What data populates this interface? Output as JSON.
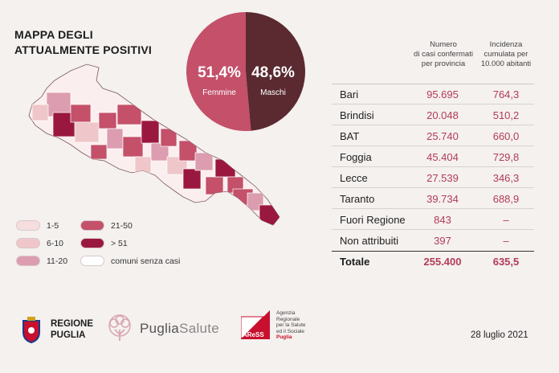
{
  "title_lines": [
    "MAPPA DEGLI",
    "ATTUALMENTE POSITIVI"
  ],
  "pie": {
    "femmine": {
      "pct": "51,4%",
      "label": "Femmine",
      "value": 51.4,
      "color": "#c4506a"
    },
    "maschi": {
      "pct": "48,6%",
      "label": "Maschi",
      "value": 48.6,
      "color": "#5a2a30"
    }
  },
  "legend": [
    {
      "label": "1-5",
      "color": "#f6dede"
    },
    {
      "label": "6-10",
      "color": "#efc6c9"
    },
    {
      "label": "11-20",
      "color": "#dc9db0"
    },
    {
      "label": "21-50",
      "color": "#c4506a"
    },
    {
      "label": "> 51",
      "color": "#9a1840"
    },
    {
      "label": "comuni senza casi",
      "color": "#ffffff"
    }
  ],
  "table": {
    "header_casi": [
      "Numero",
      "di casi confermati",
      "per provincia"
    ],
    "header_incidenza": [
      "Incidenza",
      "cumulata per",
      "10.000 abitanti"
    ],
    "rows": [
      {
        "name": "Bari",
        "casi": "95.695",
        "incidenza": "764,3"
      },
      {
        "name": "Brindisi",
        "casi": "20.048",
        "incidenza": "510,2"
      },
      {
        "name": "BAT",
        "casi": "25.740",
        "incidenza": "660,0"
      },
      {
        "name": "Foggia",
        "casi": "45.404",
        "incidenza": "729,8"
      },
      {
        "name": "Lecce",
        "casi": "27.539",
        "incidenza": "346,3"
      },
      {
        "name": "Taranto",
        "casi": "39.734",
        "incidenza": "688,9"
      },
      {
        "name": "Fuori Regione",
        "casi": "843",
        "incidenza": "–"
      },
      {
        "name": "Non attribuiti",
        "casi": "397",
        "incidenza": "–"
      }
    ],
    "total": {
      "name": "Totale",
      "casi": "255.400",
      "incidenza": "635,5"
    }
  },
  "logos": {
    "regione": [
      "REGIONE",
      "PUGLIA"
    ],
    "puglia_salute": [
      "Puglia",
      "Salute"
    ],
    "aress_mark": "AReSS",
    "aress_lines": [
      "Agenzia",
      "Regionale",
      "per la Salute",
      "ed il Sociale"
    ],
    "aress_red": "Puglia"
  },
  "date": "28 luglio 2021",
  "chart_data": {
    "type": "pie",
    "categories": [
      "Femmine",
      "Maschi"
    ],
    "values": [
      51.4,
      48.6
    ],
    "title": "MAPPA DEGLI ATTUALMENTE POSITIVI",
    "table": {
      "columns": [
        "Numero di casi confermati per provincia",
        "Incidenza cumulata per 10.000 abitanti"
      ],
      "rows": [
        [
          "Bari",
          95695,
          764.3
        ],
        [
          "Brindisi",
          20048,
          510.2
        ],
        [
          "BAT",
          25740,
          660.0
        ],
        [
          "Foggia",
          45404,
          729.8
        ],
        [
          "Lecce",
          27539,
          346.3
        ],
        [
          "Taranto",
          39734,
          688.9
        ],
        [
          "Fuori Regione",
          843,
          null
        ],
        [
          "Non attribuiti",
          397,
          null
        ],
        [
          "Totale",
          255400,
          635.5
        ]
      ]
    }
  }
}
